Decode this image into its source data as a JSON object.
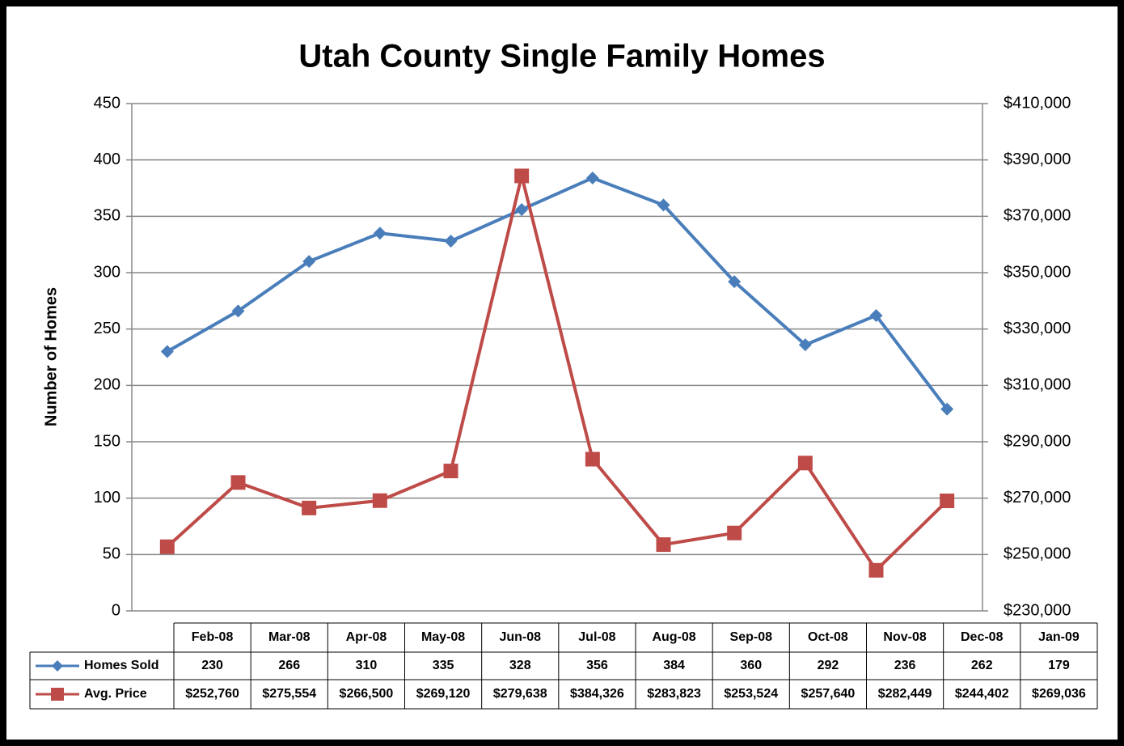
{
  "chart_data": {
    "type": "line",
    "title": "Utah County Single Family Homes",
    "y_label": "Number of Homes",
    "categories": [
      "Feb-08",
      "Mar-08",
      "Apr-08",
      "May-08",
      "Jun-08",
      "Jul-08",
      "Aug-08",
      "Sep-08",
      "Oct-08",
      "Nov-08",
      "Dec-08",
      "Jan-09"
    ],
    "series": [
      {
        "name": "Homes Sold",
        "color": "#4a7ebb",
        "marker": "diamond",
        "values": [
          230,
          266,
          310,
          335,
          328,
          356,
          384,
          360,
          292,
          236,
          262,
          179
        ]
      },
      {
        "name": "Avg. Price",
        "color": "#be4b48",
        "marker": "square",
        "axis": "y2",
        "values": [
          252760,
          275554,
          266500,
          269120,
          279638,
          384326,
          283823,
          253524,
          257640,
          282449,
          244402,
          269036
        ],
        "value_labels": [
          "$252,760",
          "$275,554",
          "$266,500",
          "$269,120",
          "$279,638",
          "$384,326",
          "$283,823",
          "$253,524",
          "$257,640",
          "$282,449",
          "$244,402",
          "$269,036"
        ]
      }
    ],
    "ylim": [
      0,
      450
    ],
    "yticks": [
      0,
      50,
      100,
      150,
      200,
      250,
      300,
      350,
      400,
      450
    ],
    "y2lim": [
      230000,
      410000
    ],
    "y2ticks": [
      {
        "value": 230000,
        "label": "$230,000"
      },
      {
        "value": 250000,
        "label": "$250,000"
      },
      {
        "value": 270000,
        "label": "$270,000"
      },
      {
        "value": 290000,
        "label": "$290,000"
      },
      {
        "value": 310000,
        "label": "$310,000"
      },
      {
        "value": 330000,
        "label": "$330,000"
      },
      {
        "value": 350000,
        "label": "$350,000"
      },
      {
        "value": 370000,
        "label": "$370,000"
      },
      {
        "value": 390000,
        "label": "$390,000"
      },
      {
        "value": 410000,
        "label": "$410,000"
      }
    ],
    "grid": true,
    "data_table": true
  }
}
